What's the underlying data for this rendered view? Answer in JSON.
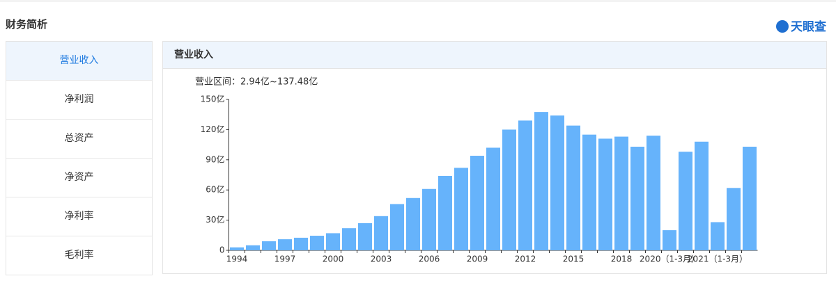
{
  "header": {
    "title": "财务简析",
    "logo": "天眼查"
  },
  "tabs": [
    "营业收入",
    "净利润",
    "总资产",
    "净资产",
    "净利率",
    "毛利率"
  ],
  "panel": {
    "title": "营业收入"
  },
  "chart_data": {
    "type": "bar",
    "subtitle": "营业区间：2.94亿~137.48亿",
    "categories": [
      "1994",
      null,
      null,
      "1997",
      null,
      null,
      "2000",
      null,
      null,
      "2003",
      null,
      null,
      "2006",
      null,
      null,
      "2009",
      null,
      null,
      "2012",
      null,
      null,
      "2015",
      null,
      null,
      "2018",
      null,
      null,
      "2020（1-3月）",
      null,
      null,
      "2021（1-3月）",
      null,
      null
    ],
    "values": [
      2.94,
      5,
      9,
      11,
      12.5,
      14.5,
      17,
      22,
      27,
      34,
      46,
      52,
      61,
      74,
      82,
      94,
      102,
      120,
      129,
      137.48,
      134,
      124,
      115,
      111,
      113,
      103,
      114,
      20,
      98,
      108,
      28,
      62,
      103
    ],
    "color": "#66b3fb",
    "ylim": [
      0,
      150
    ],
    "yticks": [
      0,
      {
        "value": 30,
        "label": "30亿"
      },
      {
        "value": 60,
        "label": "60亿"
      },
      {
        "value": 90,
        "label": "90亿"
      },
      {
        "value": 120,
        "label": "120亿"
      },
      {
        "value": 150,
        "label": "150亿"
      }
    ],
    "grid": false
  }
}
